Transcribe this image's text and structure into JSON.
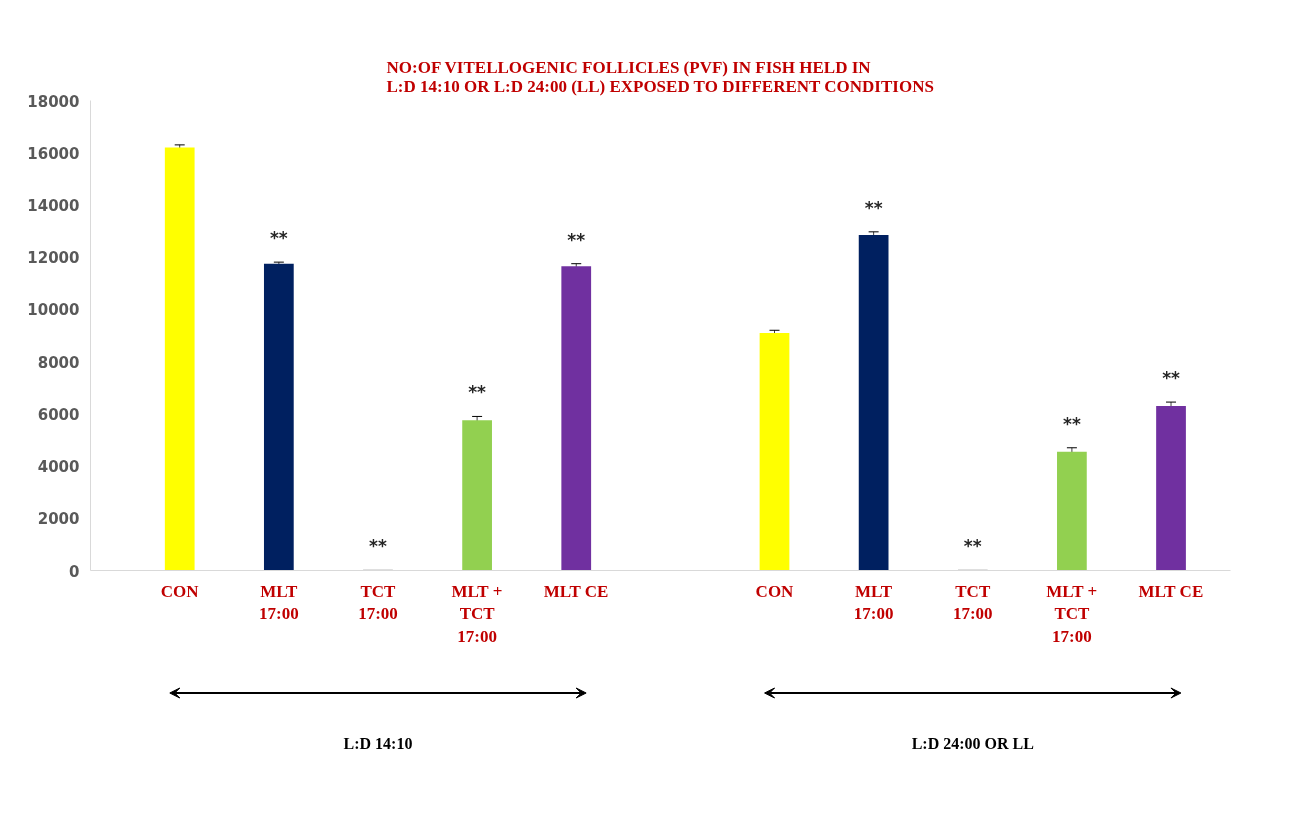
{
  "chart_data": {
    "type": "bar",
    "title": "NO:OF VITELLOGENIC FOLLICLES (PVF) IN FISH HELD IN\nL:D 14:10 OR L:D 24:00 (LL) EXPOSED TO DIFFERENT CONDITIONS",
    "categories": [
      "CON",
      "MLT\n17:00",
      "TCT\n17:00",
      "MLT +\nTCT\n17:00",
      "MLT CE",
      null,
      "CON",
      "MLT\n17:00",
      "TCT\n17:00",
      "MLT +\nTCT\n17:00",
      "MLT CE"
    ],
    "values": [
      16200,
      11750,
      30,
      5750,
      11650,
      null,
      9100,
      12850,
      30,
      4550,
      6300
    ],
    "errors": [
      100,
      60,
      null,
      150,
      100,
      null,
      100,
      120,
      null,
      150,
      150
    ],
    "colors": [
      "#ffff00",
      "#002060",
      "#7f7f7f",
      "#92d050",
      "#7030a0",
      null,
      "#ffff00",
      "#002060",
      "#7f7f7f",
      "#92d050",
      "#7030a0"
    ],
    "value_labels": [
      null,
      "**",
      "**",
      "**",
      "**",
      null,
      null,
      "**",
      "**",
      "**",
      "**"
    ],
    "annotations": [
      "L:D 14:10",
      "L:D 24:00 OR LL"
    ],
    "ylim": [
      0,
      18000
    ],
    "yticks": [
      0,
      2000,
      4000,
      6000,
      8000,
      10000,
      12000,
      14000,
      16000,
      18000
    ],
    "grid": false
  }
}
